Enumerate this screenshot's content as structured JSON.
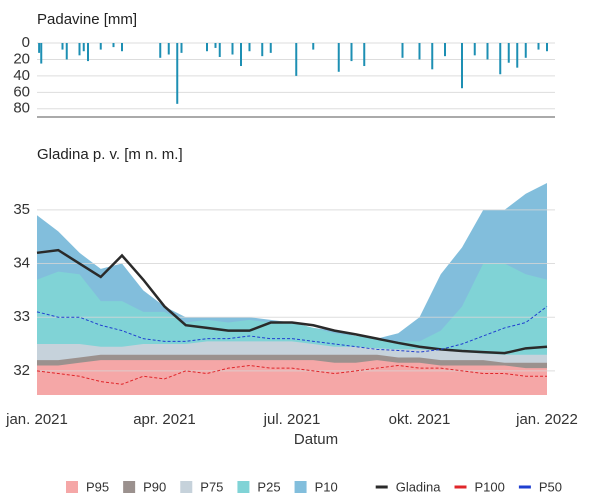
{
  "chart_data": [
    {
      "type": "bar",
      "title": "Padavine [mm]",
      "color": "#1d8fb3",
      "reversed": true,
      "x": [
        0.05,
        0.1,
        0.6,
        0.7,
        1.0,
        1.1,
        1.2,
        1.5,
        1.8,
        2.0,
        2.9,
        3.1,
        3.3,
        3.4,
        4.0,
        4.2,
        4.3,
        4.6,
        4.8,
        5.0,
        5.3,
        5.5,
        6.1,
        6.5,
        7.1,
        7.4,
        7.7,
        8.6,
        9.0,
        9.3,
        9.6,
        10.0,
        10.3,
        10.6,
        10.9,
        11.1,
        11.3,
        11.5,
        11.8,
        12.0
      ],
      "values": [
        12,
        25,
        8,
        20,
        15,
        10,
        22,
        8,
        5,
        10,
        18,
        14,
        74,
        12,
        10,
        6,
        17,
        14,
        28,
        10,
        16,
        12,
        40,
        8,
        35,
        22,
        28,
        18,
        20,
        32,
        16,
        55,
        15,
        20,
        38,
        24,
        30,
        18,
        8,
        10
      ],
      "xlim": [
        0,
        12
      ],
      "ylim": [
        0,
        90
      ],
      "yticks": [
        0,
        20,
        40,
        60,
        80
      ],
      "grid": true
    },
    {
      "type": "area",
      "title": "Gladina p. v. [m n. m.]",
      "xlabel": "Datum",
      "x": [
        0,
        0.5,
        1,
        1.5,
        2,
        2.5,
        3,
        3.5,
        4,
        4.5,
        5,
        5.5,
        6,
        6.5,
        7,
        7.5,
        8,
        8.5,
        9,
        9.5,
        10,
        10.5,
        11,
        11.5,
        12
      ],
      "xlim": [
        0,
        12
      ],
      "xticks": [
        {
          "value": 0,
          "label": "jan. 2021"
        },
        {
          "value": 3,
          "label": "apr. 2021"
        },
        {
          "value": 6,
          "label": "jul. 2021"
        },
        {
          "value": 9,
          "label": "okt. 2021"
        },
        {
          "value": 12,
          "label": "jan. 2022"
        }
      ],
      "ylim": [
        31.55,
        35.65
      ],
      "yticks": [
        32,
        33,
        34,
        35
      ],
      "grid": true,
      "legend": "bottom",
      "series": [
        {
          "name": "P95",
          "kind": "area",
          "color": "#f5a7a7",
          "values": [
            32.1,
            32.1,
            32.15,
            32.2,
            32.2,
            32.2,
            32.2,
            32.2,
            32.2,
            32.2,
            32.2,
            32.2,
            32.2,
            32.2,
            32.15,
            32.15,
            32.2,
            32.15,
            32.15,
            32.1,
            32.1,
            32.1,
            32.1,
            32.05,
            32.05
          ]
        },
        {
          "name": "P90",
          "kind": "area",
          "color": "#9b918e",
          "values": [
            32.2,
            32.2,
            32.25,
            32.3,
            32.3,
            32.3,
            32.3,
            32.3,
            32.3,
            32.3,
            32.3,
            32.3,
            32.3,
            32.3,
            32.3,
            32.3,
            32.3,
            32.25,
            32.25,
            32.2,
            32.2,
            32.2,
            32.15,
            32.15,
            32.15
          ]
        },
        {
          "name": "P75",
          "kind": "area",
          "color": "#c6d2db",
          "values": [
            32.5,
            32.5,
            32.5,
            32.45,
            32.45,
            32.5,
            32.5,
            32.5,
            32.55,
            32.55,
            32.55,
            32.55,
            32.55,
            32.5,
            32.45,
            32.45,
            32.42,
            32.4,
            32.4,
            32.38,
            32.35,
            32.32,
            32.3,
            32.3,
            32.3
          ]
        },
        {
          "name": "P25",
          "kind": "area",
          "color": "#80d3d6",
          "values": [
            33.7,
            33.85,
            33.8,
            33.3,
            33.3,
            33.1,
            33.1,
            32.9,
            32.95,
            32.9,
            32.95,
            32.9,
            32.9,
            32.8,
            32.7,
            32.65,
            32.6,
            32.55,
            32.55,
            32.75,
            33.2,
            34.0,
            34.0,
            33.8,
            33.7
          ]
        },
        {
          "name": "P10",
          "kind": "area",
          "color": "#82bedc",
          "values": [
            34.9,
            34.6,
            34.2,
            33.9,
            34.0,
            33.5,
            33.2,
            33.0,
            33.0,
            33.0,
            33.0,
            32.95,
            32.9,
            32.8,
            32.75,
            32.65,
            32.6,
            32.7,
            33.0,
            33.8,
            34.3,
            35.0,
            35.0,
            35.3,
            35.5
          ]
        },
        {
          "name": "Gladina",
          "kind": "line",
          "color": "#2a2a2a",
          "values": [
            34.2,
            34.25,
            34.0,
            33.75,
            34.15,
            33.7,
            33.2,
            32.85,
            32.8,
            32.75,
            32.75,
            32.9,
            32.9,
            32.85,
            32.75,
            32.68,
            32.6,
            32.52,
            32.45,
            32.4,
            32.37,
            32.35,
            32.33,
            32.42,
            32.45
          ]
        },
        {
          "name": "P100",
          "kind": "line",
          "dash": true,
          "color": "#e0262a",
          "values": [
            32.0,
            31.95,
            31.9,
            31.8,
            31.75,
            31.9,
            31.85,
            32.0,
            31.95,
            32.05,
            32.1,
            32.05,
            32.05,
            32.0,
            31.95,
            32.0,
            32.05,
            32.1,
            32.05,
            32.05,
            32.0,
            31.95,
            31.95,
            31.9,
            31.9
          ]
        },
        {
          "name": "P50",
          "kind": "line",
          "dash": true,
          "color": "#1f3fd0",
          "values": [
            33.1,
            33.0,
            33.0,
            32.85,
            32.75,
            32.6,
            32.55,
            32.55,
            32.6,
            32.6,
            32.65,
            32.6,
            32.6,
            32.55,
            32.5,
            32.45,
            32.4,
            32.38,
            32.35,
            32.4,
            32.5,
            32.65,
            32.8,
            32.9,
            33.2
          ]
        }
      ]
    }
  ]
}
